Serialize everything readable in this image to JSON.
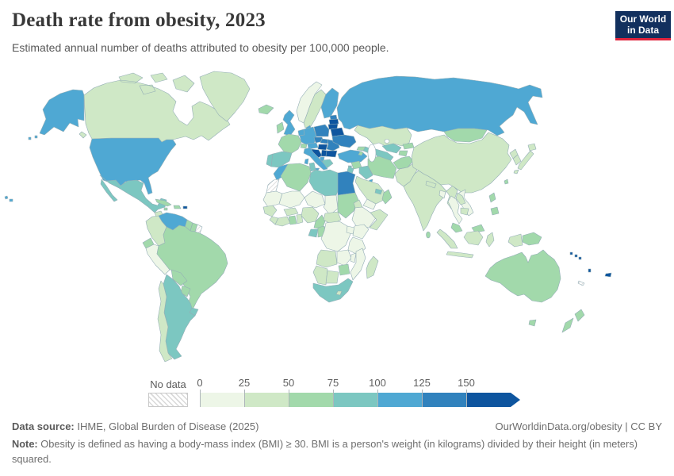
{
  "header": {
    "title": "Death rate from obesity, 2023",
    "subtitle": "Estimated annual number of deaths attributed to obesity per 100,000 people."
  },
  "logo": {
    "line1": "Our World",
    "line2": "in Data",
    "bg_color": "#12305e",
    "accent_color": "#e0233c"
  },
  "legend": {
    "no_data_label": "No data",
    "tick_labels": [
      "0",
      "25",
      "50",
      "75",
      "100",
      "125",
      "150"
    ],
    "bins": [
      {
        "range": "0-25",
        "color": "#edf6e7"
      },
      {
        "range": "25-50",
        "color": "#cfe8c6"
      },
      {
        "range": "50-75",
        "color": "#a2d9ab"
      },
      {
        "range": "75-100",
        "color": "#7cc7c1"
      },
      {
        "range": "100-125",
        "color": "#4fa8d3"
      },
      {
        "range": "125-150",
        "color": "#3182bd"
      },
      {
        "range": "150+",
        "color": "#0e559f",
        "arrow": true
      }
    ],
    "no_data_pattern": "diagonal-hatch"
  },
  "footer": {
    "source_label": "Data source:",
    "source_text": " IHME, Global Burden of Disease (2025)",
    "link_text": "OurWorldinData.org/obesity | CC BY",
    "note_label": "Note:",
    "note_text": " Obesity is defined as having a body-mass index (BMI) ≥ 30. BMI is a person's weight (in kilograms) divided by their height (in meters) squared."
  },
  "chart_data": {
    "type": "choropleth",
    "title": "Death rate from obesity, 2023",
    "unit": "deaths attributed to obesity per 100,000 people",
    "year": 2023,
    "legend_position": "bottom",
    "bins": [
      "0-25",
      "25-50",
      "50-75",
      "75-100",
      "100-125",
      "125-150",
      "150+",
      "no-data"
    ],
    "countries": {
      "united-states": "100-125",
      "canada": "25-50",
      "greenland": "25-50",
      "mexico": "75-100",
      "guatemala": "25-50",
      "honduras-nicaragua": "50-75",
      "costa-rica-panama": "25-50",
      "cuba": "50-75",
      "hispaniola": "50-75",
      "jamaica": "50-75",
      "puerto-rico": "150+",
      "trinidad-tobago": "150+",
      "venezuela": "100-125",
      "colombia": "25-50",
      "guyana": "50-75",
      "suriname": "50-75",
      "french-guiana": "no-data",
      "ecuador": "50-75",
      "peru": "0-25",
      "brazil": "50-75",
      "bolivia": "50-75",
      "paraguay": "50-75",
      "uruguay": "75-100",
      "argentina": "75-100",
      "chile": "25-50",
      "iceland": "50-75",
      "norway": "0-25",
      "sweden": "25-50",
      "finland": "100-125",
      "denmark": "100-125",
      "united-kingdom": "100-125",
      "ireland": "50-75",
      "portugal": "75-100",
      "spain": "75-100",
      "france": "50-75",
      "belgium-netherlands": "100-125",
      "germany": "100-125",
      "switzerland": "50-75",
      "austria": "100-125",
      "czechia": "125-150",
      "slovakia": "125-150",
      "poland": "125-150",
      "hungary": "150+",
      "croatia-bosnia": "150+",
      "serbia": "150+",
      "romania": "125-150",
      "moldova": "100-125",
      "bulgaria": "150+",
      "albania": "100-125",
      "greece": "75-100",
      "italy": "100-125",
      "estonia": "125-150",
      "latvia": "150+",
      "lithuania": "150+",
      "belarus": "150+",
      "ukraine": "125-150",
      "russia": "100-125",
      "kazakhstan": "25-50",
      "uzbekistan": "75-100",
      "turkmenistan": "75-100",
      "kyrgyzstan": "50-75",
      "tajikistan": "50-75",
      "mongolia": "50-75",
      "china": "25-50",
      "north-korea": "25-50",
      "south-korea": "25-50",
      "japan": "25-50",
      "taiwan": "50-75",
      "turkey": "100-125",
      "cyprus": "75-100",
      "georgia": "50-75",
      "azerbaijan": "75-100",
      "armenia": "50-75",
      "syria": "50-75",
      "israel-jordan": "75-100",
      "iraq": "75-100",
      "iran": "50-75",
      "kuwait": "100-125",
      "saudi-arabia": "25-50",
      "yemen": "0-25",
      "oman": "50-75",
      "uae": "75-100",
      "afghanistan": "50-75",
      "pakistan": "25-50",
      "india": "25-50",
      "nepal": "25-50",
      "bangladesh": "0-25",
      "sri-lanka": "50-75",
      "myanmar": "25-50",
      "vietnam": "0-25",
      "laos": "25-50",
      "thailand": "0-25",
      "cambodia": "25-50",
      "malaysia": "50-75",
      "indonesia": "25-50",
      "philippines": "50-75",
      "papua-new-guinea": "50-75",
      "australia": "50-75",
      "new-zealand": "50-75",
      "fiji": "150+",
      "solomon-islands": "150+",
      "vanuatu": "150+",
      "new-caledonia": "no-data",
      "morocco": "100-125",
      "western-sahara": "no-data",
      "algeria": "50-75",
      "tunisia": "75-100",
      "libya": "75-100",
      "egypt": "125-150",
      "mauritania": "0-25",
      "mali": "0-25",
      "niger": "0-25",
      "chad": "0-25",
      "sudan": "50-75",
      "eritrea": "25-50",
      "ethiopia": "0-25",
      "somalia": "25-50",
      "senegal": "25-50",
      "guinea": "25-50",
      "liberia-cote-divoire": "25-50",
      "ghana": "50-75",
      "togo-benin": "25-50",
      "burkina-faso": "25-50",
      "nigeria": "25-50",
      "cameroon": "50-75",
      "central-african-republic": "25-50",
      "gabon": "75-100",
      "congo": "50-75",
      "dr-congo": "0-25",
      "uganda": "0-25",
      "kenya": "0-25",
      "tanzania": "0-25",
      "angola": "25-50",
      "zambia": "0-25",
      "malawi": "0-25",
      "mozambique": "0-25",
      "zimbabwe": "50-75",
      "namibia": "25-50",
      "botswana": "25-50",
      "south-africa": "75-100",
      "lesotho": "25-50",
      "madagascar": "25-50"
    }
  }
}
